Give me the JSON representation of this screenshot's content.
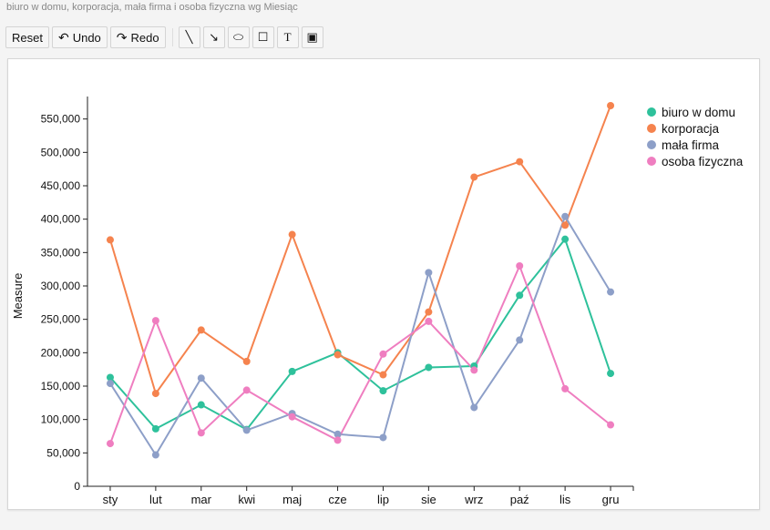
{
  "page": {
    "title": "biuro w domu, korporacja, mała firma i osoba fizyczna wg Miesiąc"
  },
  "toolbar": {
    "reset_label": "Reset",
    "undo_label": "Undo",
    "redo_label": "Redo",
    "undo_glyph": "↶",
    "redo_glyph": "↷",
    "tools": [
      {
        "name": "line-tool-icon",
        "glyph": "╲"
      },
      {
        "name": "arrow-tool-icon",
        "glyph": "↘"
      },
      {
        "name": "ellipse-tool-icon",
        "glyph": "⬭"
      },
      {
        "name": "rectangle-tool-icon",
        "glyph": "☐"
      },
      {
        "name": "text-tool-icon",
        "glyph": "T"
      },
      {
        "name": "image-tool-icon",
        "glyph": "▣"
      }
    ]
  },
  "chart_data": {
    "type": "line",
    "title": "",
    "xlabel": "",
    "ylabel": "Measure",
    "categories": [
      "sty",
      "lut",
      "mar",
      "kwi",
      "maj",
      "cze",
      "lip",
      "sie",
      "wrz",
      "paź",
      "lis",
      "gru"
    ],
    "ylim": [
      0,
      570000
    ],
    "yticks": [
      0,
      50000,
      100000,
      150000,
      200000,
      250000,
      300000,
      350000,
      400000,
      450000,
      500000,
      550000
    ],
    "ytick_labels": [
      "0",
      "50,000",
      "100,000",
      "150,000",
      "200,000",
      "250,000",
      "300,000",
      "350,000",
      "400,000",
      "450,000",
      "500,000",
      "550,000"
    ],
    "grid": false,
    "legend_position": "top-right",
    "series": [
      {
        "name": "biuro w domu",
        "color": "#2ec19b",
        "values": [
          163000,
          86000,
          122000,
          85000,
          172000,
          200000,
          143000,
          178000,
          180000,
          286000,
          370000,
          169000
        ]
      },
      {
        "name": "korporacja",
        "color": "#f5834e",
        "values": [
          369000,
          139000,
          234000,
          187000,
          377000,
          197000,
          167000,
          261000,
          463000,
          486000,
          391000,
          570000
        ]
      },
      {
        "name": "mała firma",
        "color": "#8d9fc8",
        "values": [
          154000,
          47000,
          162000,
          84000,
          109000,
          78000,
          73000,
          320000,
          118000,
          219000,
          404000,
          291000
        ]
      },
      {
        "name": "osoba fizyczna",
        "color": "#ef7ec0",
        "values": [
          64000,
          248000,
          80000,
          144000,
          104000,
          69000,
          198000,
          247000,
          174000,
          330000,
          146000,
          92000
        ]
      }
    ]
  }
}
